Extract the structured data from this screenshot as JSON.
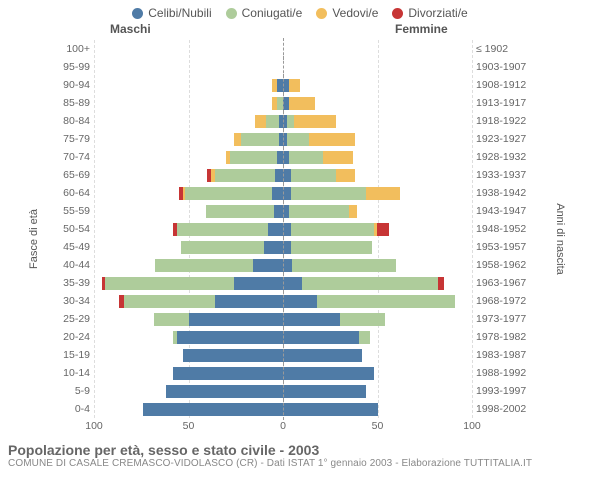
{
  "chart": {
    "type": "population-pyramid",
    "colors": {
      "celibi": "#4f7ba6",
      "coniugati": "#aecc9b",
      "vedovi": "#f2be5d",
      "divorziati": "#c73535",
      "background": "#ffffff",
      "grid": "#dddddd",
      "centerline": "#999999",
      "text": "#555555"
    },
    "legend": [
      {
        "key": "celibi",
        "label": "Celibi/Nubili"
      },
      {
        "key": "coniugati",
        "label": "Coniugati/e"
      },
      {
        "key": "vedovi",
        "label": "Vedovi/e"
      },
      {
        "key": "divorziati",
        "label": "Divorziati/e"
      }
    ],
    "header": {
      "maschi": "Maschi",
      "femmine": "Femmine"
    },
    "axis": {
      "left_title": "Fasce di età",
      "right_title": "Anni di nascita",
      "x_max": 100,
      "x_ticks_left": [
        100,
        50,
        0
      ],
      "x_ticks_right": [
        0,
        50,
        100
      ]
    },
    "rows": [
      {
        "age": "100+",
        "years": "≤ 1902",
        "m": {
          "c": 0,
          "co": 0,
          "v": 0,
          "d": 0
        },
        "f": {
          "c": 0,
          "co": 0,
          "v": 0,
          "d": 0
        }
      },
      {
        "age": "95-99",
        "years": "1903-1907",
        "m": {
          "c": 0,
          "co": 0,
          "v": 0,
          "d": 0
        },
        "f": {
          "c": 0,
          "co": 0,
          "v": 0,
          "d": 0
        }
      },
      {
        "age": "90-94",
        "years": "1908-1912",
        "m": {
          "c": 3,
          "co": 0,
          "v": 3,
          "d": 0
        },
        "f": {
          "c": 3,
          "co": 0,
          "v": 6,
          "d": 0
        }
      },
      {
        "age": "85-89",
        "years": "1913-1917",
        "m": {
          "c": 0,
          "co": 3,
          "v": 3,
          "d": 0
        },
        "f": {
          "c": 3,
          "co": 0,
          "v": 14,
          "d": 0
        }
      },
      {
        "age": "80-84",
        "years": "1918-1922",
        "m": {
          "c": 2,
          "co": 7,
          "v": 6,
          "d": 0
        },
        "f": {
          "c": 2,
          "co": 4,
          "v": 22,
          "d": 0
        }
      },
      {
        "age": "75-79",
        "years": "1923-1927",
        "m": {
          "c": 2,
          "co": 20,
          "v": 4,
          "d": 0
        },
        "f": {
          "c": 2,
          "co": 12,
          "v": 24,
          "d": 0
        }
      },
      {
        "age": "70-74",
        "years": "1928-1932",
        "m": {
          "c": 3,
          "co": 25,
          "v": 2,
          "d": 0
        },
        "f": {
          "c": 3,
          "co": 18,
          "v": 16,
          "d": 0
        }
      },
      {
        "age": "65-69",
        "years": "1933-1937",
        "m": {
          "c": 4,
          "co": 32,
          "v": 2,
          "d": 2
        },
        "f": {
          "c": 4,
          "co": 24,
          "v": 10,
          "d": 0
        }
      },
      {
        "age": "60-64",
        "years": "1938-1942",
        "m": {
          "c": 6,
          "co": 46,
          "v": 1,
          "d": 2
        },
        "f": {
          "c": 4,
          "co": 40,
          "v": 18,
          "d": 0
        }
      },
      {
        "age": "55-59",
        "years": "1943-1947",
        "m": {
          "c": 5,
          "co": 36,
          "v": 0,
          "d": 0
        },
        "f": {
          "c": 3,
          "co": 32,
          "v": 4,
          "d": 0
        }
      },
      {
        "age": "50-54",
        "years": "1948-1952",
        "m": {
          "c": 8,
          "co": 48,
          "v": 0,
          "d": 2
        },
        "f": {
          "c": 4,
          "co": 44,
          "v": 2,
          "d": 6
        }
      },
      {
        "age": "45-49",
        "years": "1953-1957",
        "m": {
          "c": 10,
          "co": 44,
          "v": 0,
          "d": 0
        },
        "f": {
          "c": 4,
          "co": 43,
          "v": 0,
          "d": 0
        }
      },
      {
        "age": "40-44",
        "years": "1958-1962",
        "m": {
          "c": 16,
          "co": 52,
          "v": 0,
          "d": 0
        },
        "f": {
          "c": 5,
          "co": 55,
          "v": 0,
          "d": 0
        }
      },
      {
        "age": "35-39",
        "years": "1963-1967",
        "m": {
          "c": 26,
          "co": 68,
          "v": 0,
          "d": 2
        },
        "f": {
          "c": 10,
          "co": 72,
          "v": 0,
          "d": 3
        }
      },
      {
        "age": "30-34",
        "years": "1968-1972",
        "m": {
          "c": 36,
          "co": 48,
          "v": 0,
          "d": 3
        },
        "f": {
          "c": 18,
          "co": 73,
          "v": 0,
          "d": 0
        }
      },
      {
        "age": "25-29",
        "years": "1973-1977",
        "m": {
          "c": 50,
          "co": 18,
          "v": 0,
          "d": 0
        },
        "f": {
          "c": 30,
          "co": 24,
          "v": 0,
          "d": 0
        }
      },
      {
        "age": "20-24",
        "years": "1978-1982",
        "m": {
          "c": 56,
          "co": 2,
          "v": 0,
          "d": 0
        },
        "f": {
          "c": 40,
          "co": 6,
          "v": 0,
          "d": 0
        }
      },
      {
        "age": "15-19",
        "years": "1983-1987",
        "m": {
          "c": 53,
          "co": 0,
          "v": 0,
          "d": 0
        },
        "f": {
          "c": 42,
          "co": 0,
          "v": 0,
          "d": 0
        }
      },
      {
        "age": "10-14",
        "years": "1988-1992",
        "m": {
          "c": 58,
          "co": 0,
          "v": 0,
          "d": 0
        },
        "f": {
          "c": 48,
          "co": 0,
          "v": 0,
          "d": 0
        }
      },
      {
        "age": "5-9",
        "years": "1993-1997",
        "m": {
          "c": 62,
          "co": 0,
          "v": 0,
          "d": 0
        },
        "f": {
          "c": 44,
          "co": 0,
          "v": 0,
          "d": 0
        }
      },
      {
        "age": "0-4",
        "years": "1998-2002",
        "m": {
          "c": 74,
          "co": 0,
          "v": 0,
          "d": 0
        },
        "f": {
          "c": 50,
          "co": 0,
          "v": 0,
          "d": 0
        }
      }
    ],
    "footer": {
      "title": "Popolazione per età, sesso e stato civile - 2003",
      "subtitle": "COMUNE DI CASALE CREMASCO-VIDOLASCO (CR) - Dati ISTAT 1° gennaio 2003 - Elaborazione TUTTITALIA.IT"
    }
  }
}
